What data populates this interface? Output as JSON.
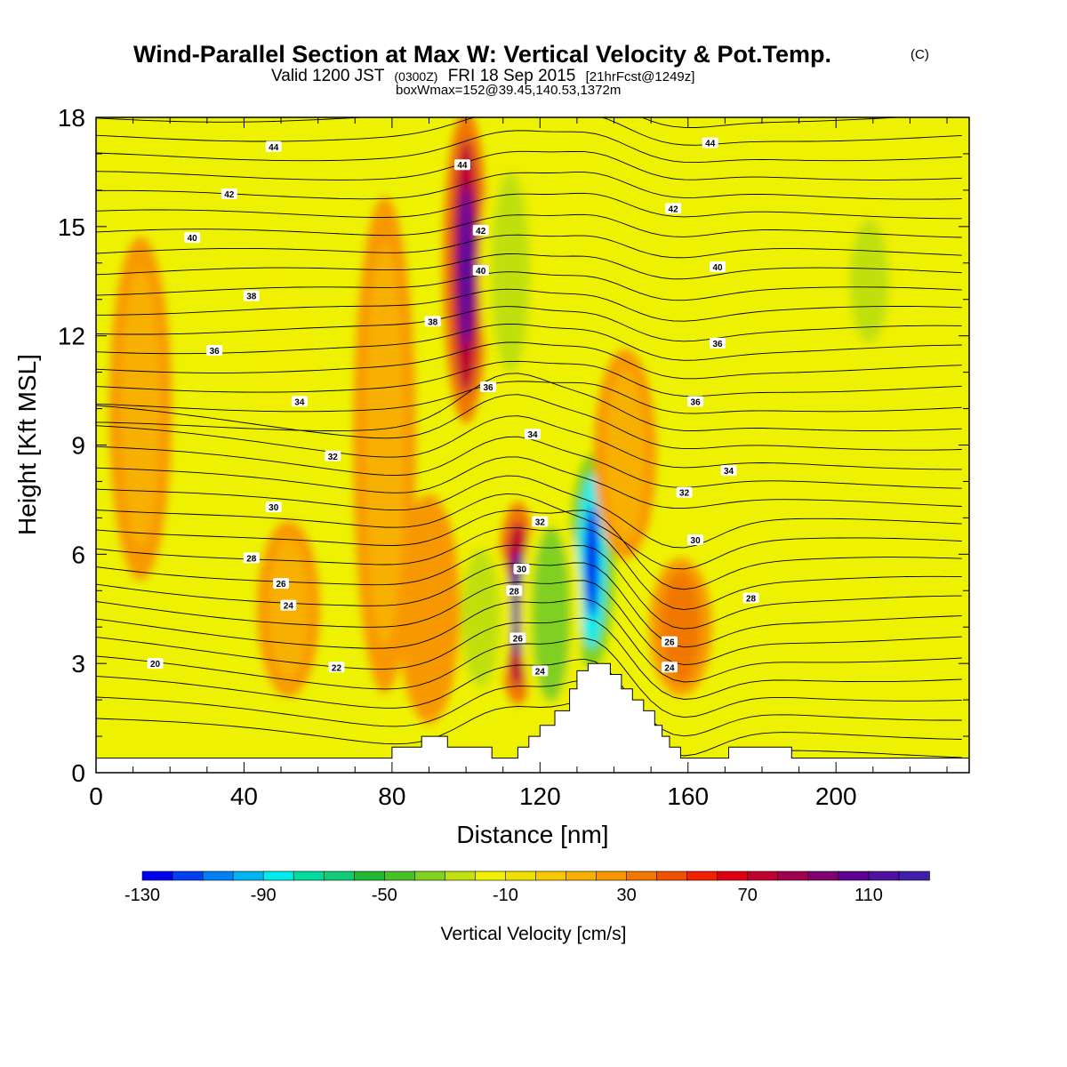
{
  "title": {
    "line1": "Wind-Parallel Section at Max W: Vertical Velocity & Pot.Temp.",
    "copyright": "(C)",
    "line2_a": "Valid 1200 JST",
    "line2_b": "(0300Z)",
    "line2_c": "FRI 18 Sep 2015",
    "line2_d": "[21hrFcst@1249z]",
    "line3": "boxWmax=152@39.45,140.53,1372m"
  },
  "chart_data": {
    "type": "heatmap",
    "xlabel": "Distance [nm]",
    "ylabel": "Height [Kft MSL]",
    "xlim": [
      0,
      236
    ],
    "ylim": [
      0,
      18
    ],
    "x_ticks": [
      0,
      40,
      80,
      120,
      160,
      200
    ],
    "y_ticks": [
      0,
      3,
      6,
      9,
      12,
      15,
      18
    ],
    "grid": false,
    "colorbar": {
      "title": "Vertical Velocity [cm/s]",
      "min": -130,
      "max": 130,
      "step": 10,
      "tick_values": [
        -130,
        -90,
        -50,
        -10,
        30,
        70,
        110
      ],
      "tick_labels": [
        "-130",
        "-90",
        "-50",
        "-10",
        "30",
        "70",
        "110"
      ],
      "colors": [
        "#0000ee",
        "#0040f0",
        "#0080f2",
        "#00b4f4",
        "#00ecec",
        "#00dca0",
        "#10cc78",
        "#20b830",
        "#48c028",
        "#80d020",
        "#c0e010",
        "#f0f000",
        "#f0e000",
        "#f8c800",
        "#f8b000",
        "#f89800",
        "#f07800",
        "#f05000",
        "#f02000",
        "#e00010",
        "#c00030",
        "#a00050",
        "#800070",
        "#600090",
        "#5010a0",
        "#4020a8"
      ]
    },
    "vertical_velocity_features": [
      {
        "x": 100,
        "y_bottom": 9.8,
        "y_top": 18,
        "w_cm_s": 110
      },
      {
        "x": 114,
        "y_bottom": 2,
        "y_top": 7.3,
        "w_cm_s": 110
      },
      {
        "x": 134,
        "y_bottom": 3,
        "y_top": 8.6,
        "w_cm_s": -130
      },
      {
        "x": 158,
        "y_bottom": 2.2,
        "y_top": 5.8,
        "w_cm_s": 60
      },
      {
        "x": 123,
        "y_bottom": 1.5,
        "y_top": 7.2,
        "w_cm_s": -50
      },
      {
        "x": 104,
        "y_bottom": 2,
        "y_top": 6.5,
        "w_cm_s": -40
      },
      {
        "x": 112,
        "y_bottom": 10.5,
        "y_top": 17,
        "w_cm_s": -40
      },
      {
        "x": 209,
        "y_bottom": 11.5,
        "y_top": 15.5,
        "w_cm_s": -40
      },
      {
        "x": 50,
        "y_bottom": 9.5,
        "y_top": 13.8,
        "w_cm_s": -30
      },
      {
        "x": 12,
        "y_bottom": 5.5,
        "y_top": 14.5,
        "w_cm_s": 30
      },
      {
        "x": 78,
        "y_bottom": 2.5,
        "y_top": 15.5,
        "w_cm_s": 30
      },
      {
        "x": 52,
        "y_bottom": 2.2,
        "y_top": 6.8,
        "w_cm_s": 30
      },
      {
        "x": 90,
        "y_bottom": 1.5,
        "y_top": 7.5,
        "w_cm_s": 40
      },
      {
        "x": 143,
        "y_bottom": 6,
        "y_top": 11.5,
        "w_cm_s": 20
      }
    ],
    "potential_temperature_labels": [
      {
        "x": 48,
        "y": 17.2,
        "value": "44"
      },
      {
        "x": 166,
        "y": 17.3,
        "value": "44"
      },
      {
        "x": 99,
        "y": 16.7,
        "value": "44"
      },
      {
        "x": 36,
        "y": 15.9,
        "value": "42"
      },
      {
        "x": 156,
        "y": 15.5,
        "value": "42"
      },
      {
        "x": 104,
        "y": 14.9,
        "value": "42"
      },
      {
        "x": 26,
        "y": 14.7,
        "value": "40"
      },
      {
        "x": 168,
        "y": 13.9,
        "value": "40"
      },
      {
        "x": 104,
        "y": 13.8,
        "value": "40"
      },
      {
        "x": 42,
        "y": 13.1,
        "value": "38"
      },
      {
        "x": 91,
        "y": 12.4,
        "value": "38"
      },
      {
        "x": 32,
        "y": 11.6,
        "value": "36"
      },
      {
        "x": 168,
        "y": 11.8,
        "value": "36"
      },
      {
        "x": 106,
        "y": 10.6,
        "value": "36"
      },
      {
        "x": 55,
        "y": 10.2,
        "value": "34"
      },
      {
        "x": 162,
        "y": 10.2,
        "value": "36"
      },
      {
        "x": 118,
        "y": 9.3,
        "value": "34"
      },
      {
        "x": 64,
        "y": 8.7,
        "value": "32"
      },
      {
        "x": 171,
        "y": 8.3,
        "value": "34"
      },
      {
        "x": 159,
        "y": 7.7,
        "value": "32"
      },
      {
        "x": 120,
        "y": 6.9,
        "value": "32"
      },
      {
        "x": 48,
        "y": 7.3,
        "value": "30"
      },
      {
        "x": 162,
        "y": 6.4,
        "value": "30"
      },
      {
        "x": 115,
        "y": 5.6,
        "value": "30"
      },
      {
        "x": 42,
        "y": 5.9,
        "value": "28"
      },
      {
        "x": 177,
        "y": 4.8,
        "value": "28"
      },
      {
        "x": 113,
        "y": 5.0,
        "value": "28"
      },
      {
        "x": 50,
        "y": 5.2,
        "value": "26"
      },
      {
        "x": 155,
        "y": 3.6,
        "value": "26"
      },
      {
        "x": 114,
        "y": 3.7,
        "value": "26"
      },
      {
        "x": 52,
        "y": 4.6,
        "value": "24"
      },
      {
        "x": 155,
        "y": 2.9,
        "value": "24"
      },
      {
        "x": 120,
        "y": 2.8,
        "value": "24"
      },
      {
        "x": 16,
        "y": 3.0,
        "value": "20"
      },
      {
        "x": 65,
        "y": 2.9,
        "value": "22"
      }
    ],
    "terrain": [
      [
        0,
        0.4
      ],
      [
        80,
        0.4
      ],
      [
        80,
        0.7
      ],
      [
        88,
        0.7
      ],
      [
        88,
        1.0
      ],
      [
        95,
        1.0
      ],
      [
        95,
        0.7
      ],
      [
        107,
        0.7
      ],
      [
        107,
        0.4
      ],
      [
        114,
        0.4
      ],
      [
        114,
        0.7
      ],
      [
        117,
        0.7
      ],
      [
        117,
        1.0
      ],
      [
        120,
        1.0
      ],
      [
        120,
        1.3
      ],
      [
        124,
        1.3
      ],
      [
        124,
        1.7
      ],
      [
        128,
        1.7
      ],
      [
        128,
        2.3
      ],
      [
        130,
        2.3
      ],
      [
        130,
        2.8
      ],
      [
        133,
        2.8
      ],
      [
        133,
        3.0
      ],
      [
        139,
        3.0
      ],
      [
        139,
        2.7
      ],
      [
        142,
        2.7
      ],
      [
        142,
        2.3
      ],
      [
        145,
        2.3
      ],
      [
        145,
        2.0
      ],
      [
        148,
        2.0
      ],
      [
        148,
        1.7
      ],
      [
        151,
        1.7
      ],
      [
        151,
        1.3
      ],
      [
        153,
        1.3
      ],
      [
        153,
        1.0
      ],
      [
        155,
        1.0
      ],
      [
        155,
        0.7
      ],
      [
        158,
        0.7
      ],
      [
        158,
        0.4
      ],
      [
        171,
        0.4
      ],
      [
        171,
        0.7
      ],
      [
        188,
        0.7
      ],
      [
        188,
        0.4
      ],
      [
        236,
        0.4
      ]
    ]
  }
}
